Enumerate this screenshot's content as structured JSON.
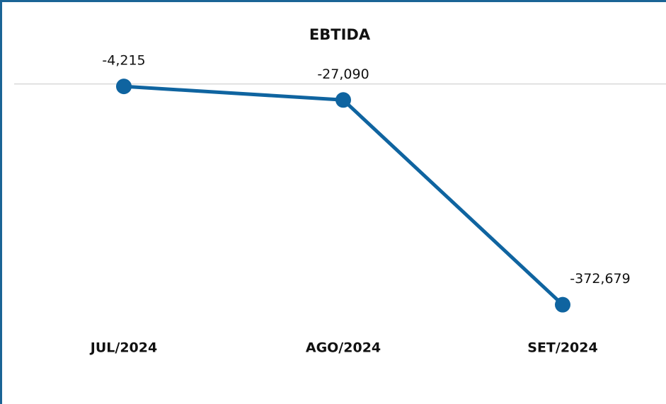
{
  "chart_data": {
    "type": "line",
    "title": "EBTIDA",
    "categories": [
      "JUL/2024",
      "AGO/2024",
      "SET/2024"
    ],
    "series": [
      {
        "name": "EBTIDA",
        "color": "#0f64a0",
        "values": [
          -4215,
          -27090,
          -372679
        ],
        "value_labels": [
          "-4,215",
          "-27,090",
          "-372,679"
        ]
      }
    ],
    "ylim": [
      -385000,
      70000
    ],
    "zero_line": true
  }
}
